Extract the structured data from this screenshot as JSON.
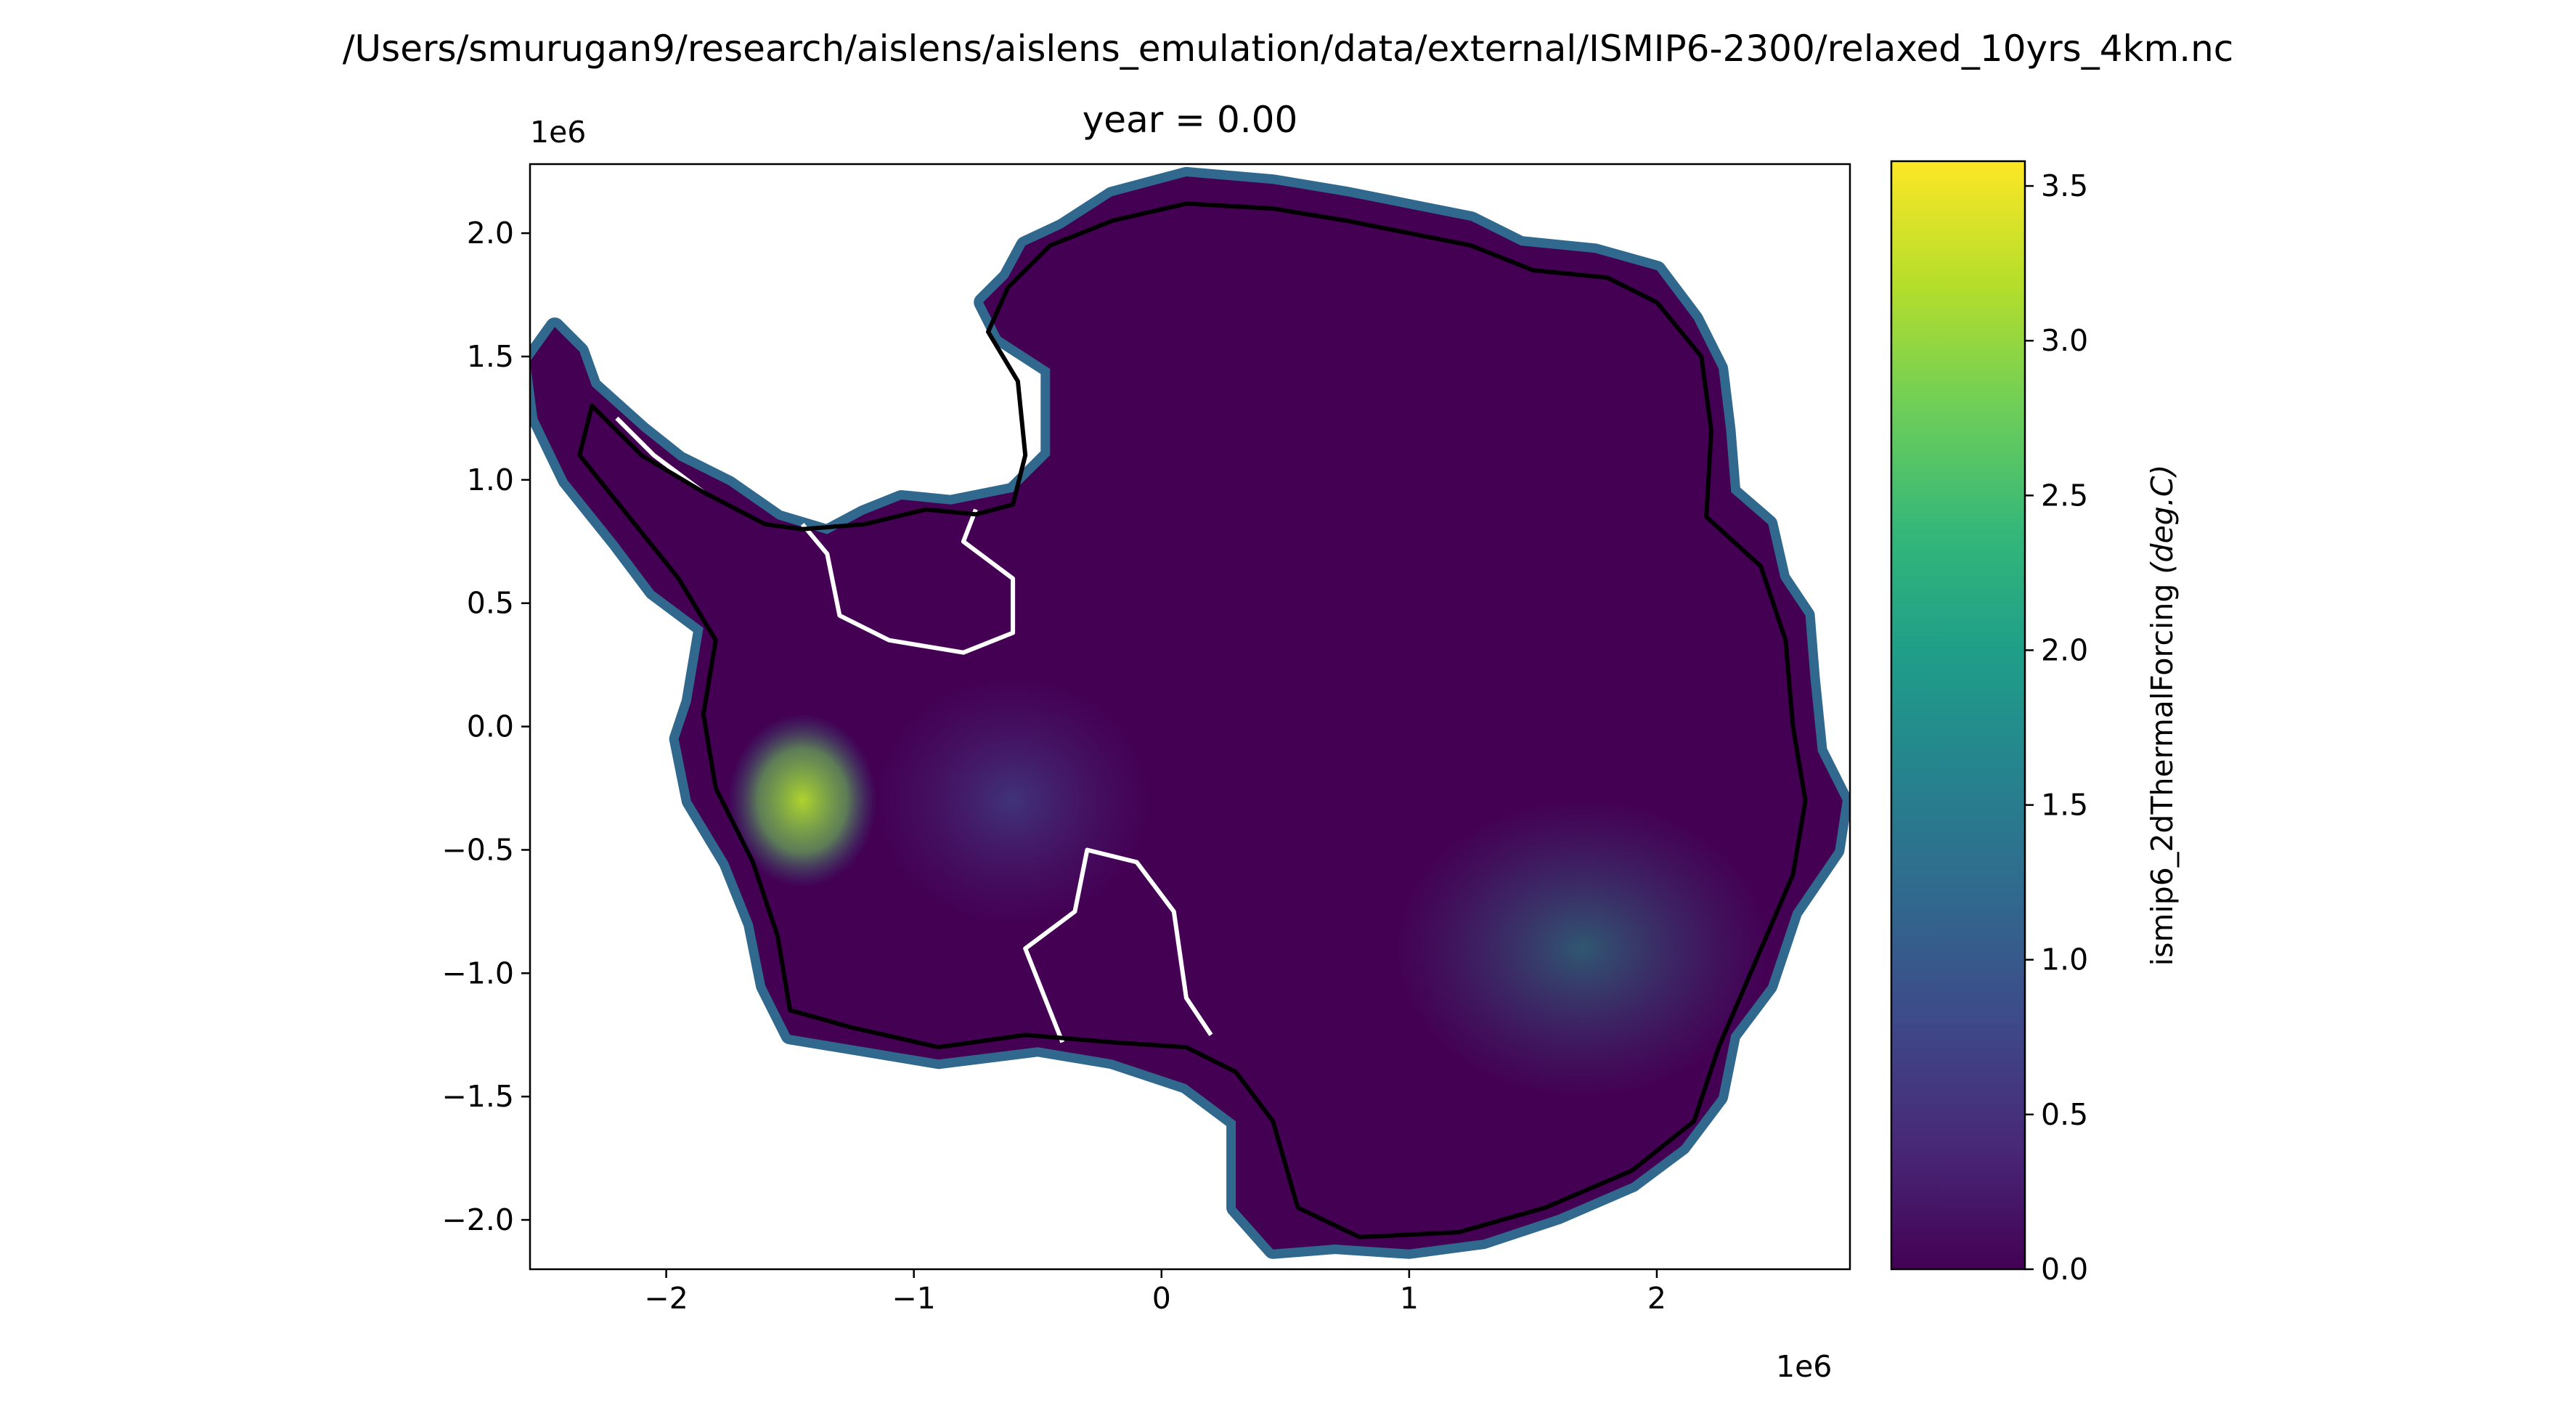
{
  "suptitle": "/Users/smurugan9/research/aislens/aislens_emulation/data/external/ISMIP6-2300/relaxed_10yrs_4km.nc",
  "title": "year = 0.00",
  "colors": {
    "viridis": [
      "#440154",
      "#482878",
      "#3e4989",
      "#31688e",
      "#26828e",
      "#1f9e89",
      "#35b779",
      "#6ece58",
      "#b5de2b",
      "#fde725"
    ],
    "grounding_line": "#000000",
    "calving_front": "#ffffff"
  },
  "chart_data": {
    "type": "heatmap",
    "title": "year = 0.00",
    "xlabel": "",
    "ylabel": "",
    "x_offset_label": "1e6",
    "y_offset_label": "1e6",
    "xlim": [
      -2.55,
      2.78
    ],
    "ylim": [
      -2.2,
      2.28
    ],
    "xticks": [
      -2,
      -1,
      0,
      1,
      2
    ],
    "xtick_labels": [
      "−2",
      "−1",
      "0",
      "1",
      "2"
    ],
    "yticks": [
      -2.0,
      -1.5,
      -1.0,
      -0.5,
      0.0,
      0.5,
      1.0,
      1.5,
      2.0
    ],
    "ytick_labels": [
      "−2.0",
      "−1.5",
      "−1.0",
      "−0.5",
      "0.0",
      "0.5",
      "1.0",
      "1.5",
      "2.0"
    ],
    "colorbar": {
      "label": "ismip6_2dThermalForcing (deg.C)",
      "label_prefix": "ismip6_2dThermalForcing ",
      "label_units": "(deg.C)",
      "colormap": "viridis",
      "range": [
        0.0,
        3.58
      ],
      "ticks": [
        0.0,
        0.5,
        1.0,
        1.5,
        2.0,
        2.5,
        3.0,
        3.5
      ],
      "tick_labels": [
        "0.0",
        "0.5",
        "1.0",
        "1.5",
        "2.0",
        "2.5",
        "3.0",
        "3.5"
      ]
    },
    "grid": false,
    "continent_outline": [
      [
        -2.45,
        1.62
      ],
      [
        -2.35,
        1.52
      ],
      [
        -2.3,
        1.38
      ],
      [
        -2.1,
        1.2
      ],
      [
        -1.95,
        1.08
      ],
      [
        -1.75,
        0.98
      ],
      [
        -1.55,
        0.84
      ],
      [
        -1.35,
        0.78
      ],
      [
        -1.2,
        0.86
      ],
      [
        -1.05,
        0.92
      ],
      [
        -0.85,
        0.9
      ],
      [
        -0.6,
        0.95
      ],
      [
        -0.45,
        1.1
      ],
      [
        -0.45,
        1.45
      ],
      [
        -0.65,
        1.58
      ],
      [
        -0.72,
        1.72
      ],
      [
        -0.62,
        1.82
      ],
      [
        -0.55,
        1.95
      ],
      [
        -0.4,
        2.02
      ],
      [
        -0.2,
        2.15
      ],
      [
        0.1,
        2.23
      ],
      [
        0.45,
        2.2
      ],
      [
        0.75,
        2.15
      ],
      [
        1.0,
        2.1
      ],
      [
        1.25,
        2.05
      ],
      [
        1.45,
        1.95
      ],
      [
        1.75,
        1.92
      ],
      [
        2.0,
        1.85
      ],
      [
        2.15,
        1.65
      ],
      [
        2.25,
        1.45
      ],
      [
        2.28,
        1.2
      ],
      [
        2.3,
        0.95
      ],
      [
        2.45,
        0.82
      ],
      [
        2.5,
        0.6
      ],
      [
        2.6,
        0.45
      ],
      [
        2.62,
        0.2
      ],
      [
        2.65,
        -0.1
      ],
      [
        2.75,
        -0.3
      ],
      [
        2.72,
        -0.5
      ],
      [
        2.55,
        -0.75
      ],
      [
        2.45,
        -1.05
      ],
      [
        2.3,
        -1.25
      ],
      [
        2.25,
        -1.5
      ],
      [
        2.1,
        -1.7
      ],
      [
        1.9,
        -1.85
      ],
      [
        1.6,
        -1.98
      ],
      [
        1.3,
        -2.08
      ],
      [
        1.0,
        -2.12
      ],
      [
        0.7,
        -2.1
      ],
      [
        0.45,
        -2.12
      ],
      [
        0.3,
        -1.95
      ],
      [
        0.3,
        -1.6
      ],
      [
        0.1,
        -1.45
      ],
      [
        -0.2,
        -1.35
      ],
      [
        -0.5,
        -1.3
      ],
      [
        -0.9,
        -1.35
      ],
      [
        -1.2,
        -1.3
      ],
      [
        -1.5,
        -1.25
      ],
      [
        -1.6,
        -1.05
      ],
      [
        -1.65,
        -0.8
      ],
      [
        -1.75,
        -0.55
      ],
      [
        -1.9,
        -0.3
      ],
      [
        -1.95,
        -0.05
      ],
      [
        -1.9,
        0.1
      ],
      [
        -1.85,
        0.4
      ],
      [
        -2.05,
        0.55
      ],
      [
        -2.2,
        0.75
      ],
      [
        -2.4,
        1.0
      ],
      [
        -2.52,
        1.25
      ],
      [
        -2.55,
        1.48
      ]
    ],
    "grounding_line": [
      [
        -2.3,
        1.3
      ],
      [
        -2.1,
        1.1
      ],
      [
        -1.85,
        0.95
      ],
      [
        -1.6,
        0.82
      ],
      [
        -1.45,
        0.8
      ],
      [
        -1.2,
        0.82
      ],
      [
        -0.95,
        0.88
      ],
      [
        -0.75,
        0.86
      ],
      [
        -0.6,
        0.9
      ],
      [
        -0.55,
        1.1
      ],
      [
        -0.58,
        1.4
      ],
      [
        -0.7,
        1.6
      ],
      [
        -0.62,
        1.78
      ],
      [
        -0.45,
        1.95
      ],
      [
        -0.2,
        2.05
      ],
      [
        0.1,
        2.12
      ],
      [
        0.45,
        2.1
      ],
      [
        0.75,
        2.05
      ],
      [
        1.0,
        2.0
      ],
      [
        1.25,
        1.95
      ],
      [
        1.5,
        1.85
      ],
      [
        1.8,
        1.82
      ],
      [
        2.0,
        1.72
      ],
      [
        2.18,
        1.5
      ],
      [
        2.22,
        1.2
      ],
      [
        2.2,
        0.85
      ],
      [
        2.42,
        0.65
      ],
      [
        2.52,
        0.35
      ],
      [
        2.55,
        0.0
      ],
      [
        2.6,
        -0.3
      ],
      [
        2.55,
        -0.6
      ],
      [
        2.4,
        -0.95
      ],
      [
        2.25,
        -1.3
      ],
      [
        2.15,
        -1.6
      ],
      [
        1.9,
        -1.8
      ],
      [
        1.55,
        -1.95
      ],
      [
        1.2,
        -2.05
      ],
      [
        0.8,
        -2.07
      ],
      [
        0.55,
        -1.95
      ],
      [
        0.45,
        -1.6
      ],
      [
        0.3,
        -1.4
      ],
      [
        0.1,
        -1.3
      ],
      [
        -0.2,
        -1.28
      ],
      [
        -0.55,
        -1.25
      ],
      [
        -0.9,
        -1.3
      ],
      [
        -1.25,
        -1.22
      ],
      [
        -1.5,
        -1.15
      ],
      [
        -1.55,
        -0.85
      ],
      [
        -1.65,
        -0.55
      ],
      [
        -1.8,
        -0.25
      ],
      [
        -1.85,
        0.05
      ],
      [
        -1.8,
        0.35
      ],
      [
        -1.95,
        0.6
      ],
      [
        -2.15,
        0.85
      ],
      [
        -2.35,
        1.1
      ]
    ],
    "ice_shelf_fronts": [
      [
        [
          -1.45,
          0.82
        ],
        [
          -1.35,
          0.7
        ],
        [
          -1.3,
          0.45
        ],
        [
          -1.1,
          0.35
        ],
        [
          -0.8,
          0.3
        ],
        [
          -0.6,
          0.38
        ],
        [
          -0.6,
          0.6
        ],
        [
          -0.8,
          0.75
        ],
        [
          -0.75,
          0.88
        ]
      ],
      [
        [
          -0.4,
          -1.28
        ],
        [
          -0.55,
          -0.9
        ],
        [
          -0.35,
          -0.75
        ],
        [
          -0.3,
          -0.5
        ],
        [
          -0.1,
          -0.55
        ],
        [
          0.05,
          -0.75
        ],
        [
          0.1,
          -1.1
        ],
        [
          0.2,
          -1.25
        ]
      ],
      [
        [
          -2.2,
          1.25
        ],
        [
          -2.05,
          1.1
        ],
        [
          -1.85,
          0.95
        ]
      ]
    ]
  }
}
